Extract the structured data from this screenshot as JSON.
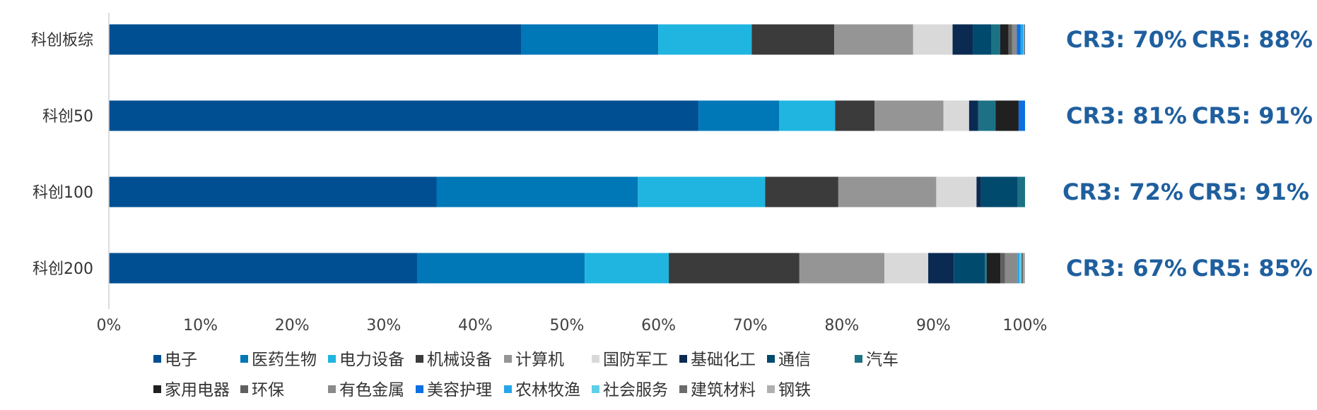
{
  "chart_data": {
    "type": "bar",
    "orientation": "horizontal",
    "stacked": true,
    "categories": [
      "科创板综",
      "科创50",
      "科创100",
      "科创200"
    ],
    "xlim": [
      0,
      100
    ],
    "x_ticks": [
      "0%",
      "10%",
      "20%",
      "30%",
      "40%",
      "50%",
      "60%",
      "70%",
      "80%",
      "90%",
      "100%"
    ],
    "legend_position": "bottom",
    "grid": false,
    "series": [
      {
        "name": "电子",
        "color": "#004f93",
        "values": [
          45.0,
          64.3,
          35.8,
          33.8
        ]
      },
      {
        "name": "医药生物",
        "color": "#0077b6",
        "values": [
          14.9,
          8.8,
          22.0,
          18.3
        ]
      },
      {
        "name": "电力设备",
        "color": "#1fb5e0",
        "values": [
          10.2,
          6.1,
          13.9,
          9.2
        ]
      },
      {
        "name": "机械设备",
        "color": "#3b3b3b",
        "values": [
          9.0,
          4.3,
          8.0,
          14.3
        ]
      },
      {
        "name": "计算机",
        "color": "#959595",
        "values": [
          8.6,
          7.5,
          10.7,
          9.3
        ]
      },
      {
        "name": "国防军工",
        "color": "#d9d9d9",
        "values": [
          4.3,
          2.8,
          4.4,
          4.8
        ]
      },
      {
        "name": "基础化工",
        "color": "#0b2a52",
        "values": [
          2.2,
          1.0,
          0.5,
          2.8
        ]
      },
      {
        "name": "通信",
        "color": "#004a6e",
        "values": [
          2.0,
          0,
          4.0,
          3.4
        ]
      },
      {
        "name": "汽车",
        "color": "#1c7284",
        "values": [
          1.0,
          1.9,
          0.8,
          0.2
        ]
      },
      {
        "name": "家用电器",
        "color": "#202020",
        "values": [
          0.9,
          2.5,
          0,
          1.5
        ]
      },
      {
        "name": "环保",
        "color": "#5f5f5f",
        "values": [
          0.4,
          0,
          0,
          0.5
        ]
      },
      {
        "name": "有色金属",
        "color": "#8a8a8a",
        "values": [
          0.5,
          0,
          0,
          1.4
        ]
      },
      {
        "name": "美容护理",
        "color": "#0d6fe0",
        "values": [
          0.4,
          0.7,
          0,
          0
        ]
      },
      {
        "name": "农林牧渔",
        "color": "#25a6ea",
        "values": [
          0.3,
          0,
          0,
          0.2
        ]
      },
      {
        "name": "社会服务",
        "color": "#5ecfe8",
        "values": [
          0.1,
          0,
          0,
          0.2
        ]
      },
      {
        "name": "建筑材料",
        "color": "#6b6b6b",
        "values": [
          0.1,
          0,
          0,
          0.2
        ]
      },
      {
        "name": "钢铁",
        "color": "#b0b0b0",
        "values": [
          0,
          0,
          0,
          0.2
        ]
      }
    ],
    "annotations": [
      {
        "cr3": "CR3: 70%",
        "cr5": "CR5: 88%"
      },
      {
        "cr3": "CR3: 81%",
        "cr5": "CR5: 91%"
      },
      {
        "cr3": "CR3: 72%",
        "cr5": "CR5: 91%"
      },
      {
        "cr3": "CR3: 67%",
        "cr5": "CR5: 85%"
      }
    ]
  }
}
